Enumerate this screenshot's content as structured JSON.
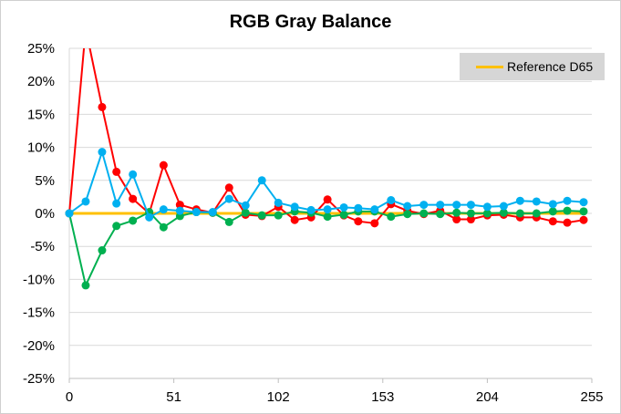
{
  "chart_data": {
    "type": "line",
    "title": "RGB Gray Balance",
    "xlabel": "",
    "ylabel": "",
    "xlim": [
      0,
      255
    ],
    "ylim": [
      -25,
      25
    ],
    "x_ticks": [
      0,
      51,
      102,
      153,
      204,
      255
    ],
    "y_ticks": [
      25,
      20,
      15,
      10,
      5,
      0,
      -5,
      -10,
      -15,
      -20,
      -25
    ],
    "y_tick_labels": [
      "25%",
      "20%",
      "15%",
      "10%",
      "5%",
      "0%",
      "-5%",
      "-10%",
      "-15%",
      "-20%",
      "-25%"
    ],
    "grid": "horizontal",
    "legend_position": "top-right",
    "x": [
      0,
      8,
      16,
      23,
      31,
      39,
      46,
      54,
      62,
      70,
      78,
      86,
      94,
      102,
      110,
      118,
      126,
      134,
      141,
      149,
      157,
      165,
      173,
      181,
      189,
      196,
      204,
      212,
      220,
      228,
      236,
      243,
      251
    ],
    "series": [
      {
        "name": "",
        "color": "#ff0000",
        "values": [
          0,
          28,
          16.1,
          6.3,
          2.2,
          0,
          7.3,
          1.3,
          0.6,
          0.1,
          3.9,
          -0.2,
          -0.4,
          1.0,
          -1.0,
          -0.6,
          2.1,
          -0.3,
          -1.2,
          -1.5,
          1.4,
          0.4,
          -0.1,
          0.4,
          -0.9,
          -0.9,
          -0.3,
          -0.2,
          -0.6,
          -0.6,
          -1.2,
          -1.4,
          -1.0
        ]
      },
      {
        "name": "",
        "color": "#00b050",
        "values": [
          0,
          -10.9,
          -5.6,
          -1.9,
          -1.1,
          0.2,
          -2.1,
          -0.4,
          0.2,
          0.1,
          -1.3,
          0.1,
          -0.3,
          -0.3,
          0.3,
          0.1,
          -0.5,
          -0.2,
          0.3,
          0.3,
          -0.5,
          -0.1,
          0.0,
          -0.1,
          0.1,
          0.0,
          0.0,
          0.1,
          0.0,
          0.0,
          0.3,
          0.4,
          0.3
        ]
      },
      {
        "name": "",
        "color": "#00b0f0",
        "values": [
          0,
          1.8,
          9.3,
          1.5,
          5.9,
          -0.6,
          0.6,
          0.4,
          0.2,
          0.2,
          2.2,
          1.2,
          5.0,
          1.6,
          1.0,
          0.5,
          0.6,
          0.9,
          0.8,
          0.6,
          2.0,
          1.1,
          1.3,
          1.3,
          1.3,
          1.3,
          1.0,
          1.1,
          1.9,
          1.8,
          1.4,
          1.9,
          1.7
        ]
      },
      {
        "name": "Reference D65",
        "color": "#ffc000",
        "values": [
          0,
          0,
          0,
          0,
          0,
          0,
          0,
          0,
          0,
          0,
          0,
          0,
          0,
          0,
          0,
          0,
          0,
          0,
          0,
          0,
          0,
          0,
          0,
          0,
          0,
          0,
          0,
          0,
          0,
          0,
          0,
          0,
          0
        ],
        "reference": true
      }
    ]
  }
}
